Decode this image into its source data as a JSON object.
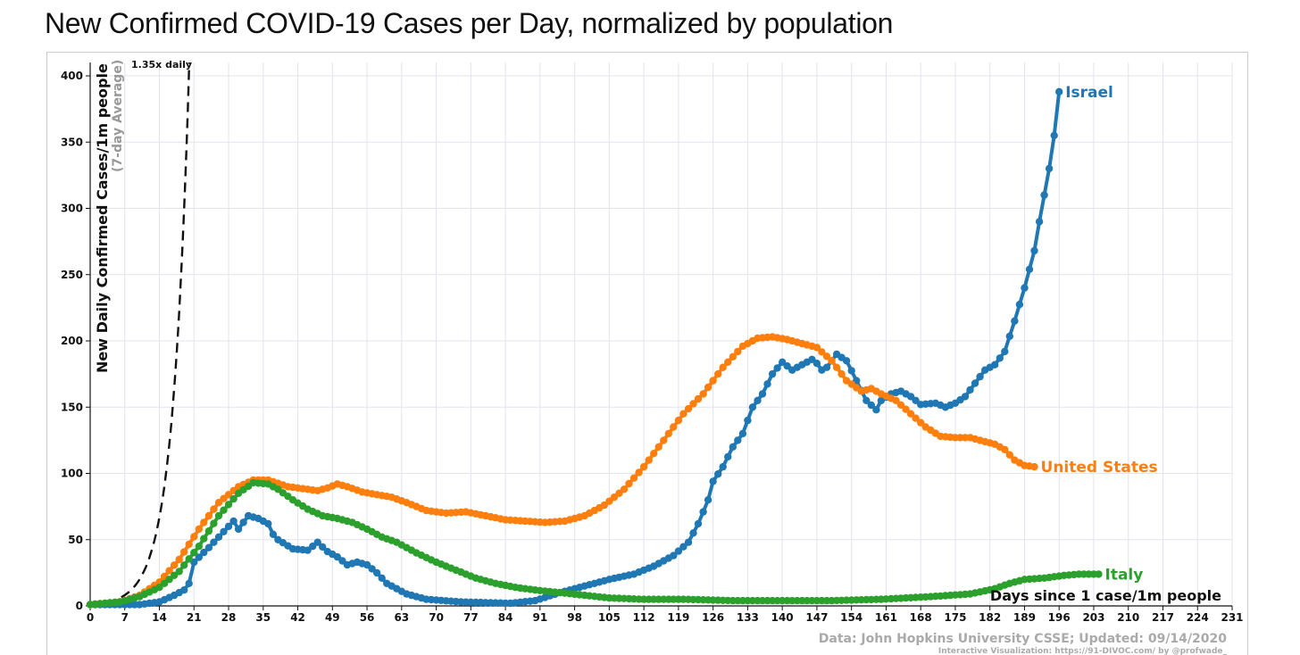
{
  "title": "New Confirmed COVID-19 Cases per Day, normalized by population",
  "colors": {
    "israel": "#1f77b4",
    "united_states": "#ff7f0e",
    "italy": "#2ca02c",
    "grid": "#e3e3ee",
    "reference": "#111111",
    "credit": "#aaaaaa"
  },
  "chart_data": {
    "type": "line",
    "title": "New Confirmed COVID-19 Cases per Day, normalized by population",
    "xlabel": "Days since 1 case/1m people",
    "ylabel": "New Daily Confirmed Cases/1m people",
    "ylabel_sub": "(7-day Average)",
    "xlim": [
      0,
      231
    ],
    "ylim": [
      0,
      410
    ],
    "x_ticks": [
      0,
      7,
      14,
      21,
      28,
      35,
      42,
      49,
      56,
      63,
      70,
      77,
      84,
      91,
      98,
      105,
      112,
      119,
      126,
      133,
      140,
      147,
      154,
      161,
      168,
      175,
      182,
      189,
      196,
      203,
      210,
      217,
      224,
      231
    ],
    "y_ticks": [
      0,
      50,
      100,
      150,
      200,
      250,
      300,
      350,
      400
    ],
    "grid": true,
    "reference_line": {
      "label": "1.35x daily",
      "growth": 1.35,
      "start_value": 1.0
    },
    "series": [
      {
        "name": "Israel",
        "color": "#1f77b4",
        "points": [
          [
            0,
            1
          ],
          [
            6,
            1
          ],
          [
            10,
            1
          ],
          [
            14,
            3
          ],
          [
            17,
            8
          ],
          [
            19,
            12
          ],
          [
            20,
            17
          ],
          [
            21,
            33
          ],
          [
            24,
            44
          ],
          [
            27,
            56
          ],
          [
            29,
            64
          ],
          [
            30,
            58
          ],
          [
            31,
            63
          ],
          [
            32,
            68
          ],
          [
            34,
            66
          ],
          [
            36,
            62
          ],
          [
            37,
            54
          ],
          [
            38,
            50
          ],
          [
            41,
            43
          ],
          [
            44,
            42
          ],
          [
            46,
            48
          ],
          [
            48,
            41
          ],
          [
            50,
            37
          ],
          [
            52,
            31
          ],
          [
            54,
            33
          ],
          [
            56,
            31
          ],
          [
            58,
            25
          ],
          [
            60,
            17
          ],
          [
            64,
            9
          ],
          [
            68,
            5
          ],
          [
            75,
            3
          ],
          [
            85,
            2
          ],
          [
            90,
            4
          ],
          [
            95,
            10
          ],
          [
            100,
            15
          ],
          [
            105,
            20
          ],
          [
            110,
            24
          ],
          [
            114,
            30
          ],
          [
            118,
            38
          ],
          [
            121,
            48
          ],
          [
            123,
            62
          ],
          [
            125,
            80
          ],
          [
            126,
            94
          ],
          [
            128,
            105
          ],
          [
            130,
            120
          ],
          [
            132,
            130
          ],
          [
            133,
            140
          ],
          [
            134,
            150
          ],
          [
            136,
            160
          ],
          [
            138,
            175
          ],
          [
            140,
            184
          ],
          [
            142,
            178
          ],
          [
            144,
            182
          ],
          [
            146,
            186
          ],
          [
            147,
            183
          ],
          [
            148,
            178
          ],
          [
            149,
            180
          ],
          [
            151,
            190
          ],
          [
            153,
            185
          ],
          [
            155,
            170
          ],
          [
            157,
            155
          ],
          [
            159,
            148
          ],
          [
            160,
            155
          ],
          [
            162,
            160
          ],
          [
            164,
            162
          ],
          [
            166,
            158
          ],
          [
            168,
            152
          ],
          [
            171,
            153
          ],
          [
            173,
            150
          ],
          [
            175,
            153
          ],
          [
            177,
            158
          ],
          [
            179,
            168
          ],
          [
            181,
            178
          ],
          [
            183,
            182
          ],
          [
            185,
            192
          ],
          [
            187,
            215
          ],
          [
            189,
            240
          ],
          [
            191,
            268
          ],
          [
            192,
            290
          ],
          [
            193,
            310
          ],
          [
            194,
            330
          ],
          [
            195,
            355
          ],
          [
            196,
            388
          ]
        ]
      },
      {
        "name": "United States",
        "color": "#ff7f0e",
        "points": [
          [
            0,
            1
          ],
          [
            6,
            3
          ],
          [
            10,
            8
          ],
          [
            14,
            18
          ],
          [
            18,
            35
          ],
          [
            22,
            58
          ],
          [
            26,
            78
          ],
          [
            30,
            90
          ],
          [
            33,
            95
          ],
          [
            36,
            95
          ],
          [
            40,
            90
          ],
          [
            44,
            88
          ],
          [
            46,
            87
          ],
          [
            48,
            89
          ],
          [
            50,
            92
          ],
          [
            52,
            90
          ],
          [
            55,
            86
          ],
          [
            58,
            84
          ],
          [
            61,
            82
          ],
          [
            64,
            78
          ],
          [
            68,
            72
          ],
          [
            72,
            70
          ],
          [
            76,
            71
          ],
          [
            80,
            68
          ],
          [
            84,
            65
          ],
          [
            88,
            64
          ],
          [
            92,
            63
          ],
          [
            96,
            64
          ],
          [
            100,
            68
          ],
          [
            104,
            76
          ],
          [
            108,
            88
          ],
          [
            112,
            105
          ],
          [
            116,
            125
          ],
          [
            120,
            145
          ],
          [
            124,
            160
          ],
          [
            128,
            180
          ],
          [
            132,
            196
          ],
          [
            135,
            202
          ],
          [
            138,
            203
          ],
          [
            141,
            201
          ],
          [
            144,
            198
          ],
          [
            147,
            195
          ],
          [
            150,
            185
          ],
          [
            153,
            170
          ],
          [
            156,
            162
          ],
          [
            158,
            164
          ],
          [
            160,
            160
          ],
          [
            163,
            155
          ],
          [
            166,
            145
          ],
          [
            169,
            135
          ],
          [
            172,
            128
          ],
          [
            175,
            127
          ],
          [
            178,
            127
          ],
          [
            181,
            124
          ],
          [
            183,
            122
          ],
          [
            185,
            118
          ],
          [
            187,
            110
          ],
          [
            189,
            106
          ],
          [
            191,
            105
          ]
        ]
      },
      {
        "name": "Italy",
        "color": "#2ca02c",
        "points": [
          [
            0,
            1
          ],
          [
            6,
            3
          ],
          [
            10,
            7
          ],
          [
            14,
            14
          ],
          [
            18,
            26
          ],
          [
            22,
            45
          ],
          [
            26,
            68
          ],
          [
            30,
            85
          ],
          [
            33,
            93
          ],
          [
            36,
            92
          ],
          [
            38,
            88
          ],
          [
            41,
            80
          ],
          [
            44,
            73
          ],
          [
            47,
            68
          ],
          [
            50,
            66
          ],
          [
            53,
            63
          ],
          [
            56,
            58
          ],
          [
            59,
            52
          ],
          [
            62,
            48
          ],
          [
            66,
            40
          ],
          [
            70,
            33
          ],
          [
            74,
            27
          ],
          [
            78,
            21
          ],
          [
            82,
            17
          ],
          [
            86,
            14
          ],
          [
            90,
            12
          ],
          [
            95,
            10
          ],
          [
            100,
            8
          ],
          [
            105,
            6
          ],
          [
            112,
            5
          ],
          [
            120,
            5
          ],
          [
            130,
            4
          ],
          [
            140,
            4
          ],
          [
            150,
            4
          ],
          [
            160,
            5
          ],
          [
            170,
            7
          ],
          [
            178,
            9
          ],
          [
            183,
            13
          ],
          [
            186,
            17
          ],
          [
            189,
            20
          ],
          [
            193,
            21
          ],
          [
            197,
            23
          ],
          [
            200,
            24
          ],
          [
            204,
            24
          ]
        ]
      }
    ]
  },
  "credits": {
    "source": "Data: John Hopkins University CSSE; Updated: 09/14/2020",
    "viz": "Interactive Visualization: https://91-DIVOC.com/ by @profwade_"
  }
}
